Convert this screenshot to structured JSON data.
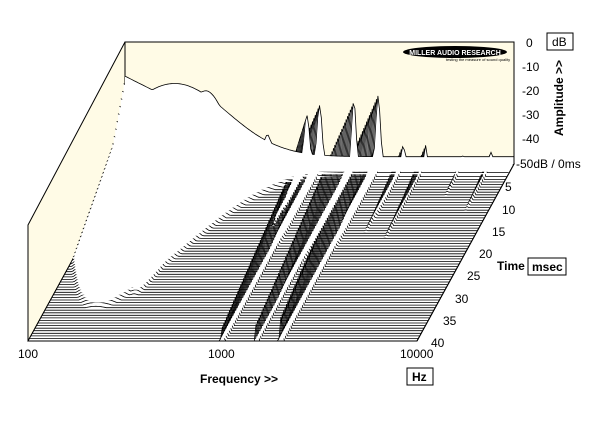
{
  "chart_data": {
    "type": "area",
    "subtype": "cumulative-spectral-decay-waterfall",
    "title": "",
    "brand": {
      "name": "MILLER AUDIO RESEARCH",
      "tagline": "testing the measure of sound quality"
    },
    "x_axis": {
      "label": "Frequency >>",
      "unit": "Hz",
      "scale": "log",
      "range": [
        100,
        10000
      ],
      "ticks": [
        "100",
        "1000",
        "10000"
      ]
    },
    "y_axis": {
      "label": "Amplitude >>",
      "unit": "dB",
      "range": [
        -50,
        0
      ],
      "ticks": [
        "0",
        "-10",
        "-20",
        "-30",
        "-40",
        "-50dB / 0ms"
      ]
    },
    "z_axis": {
      "label": "Time",
      "unit": "msec",
      "range": [
        0,
        40
      ],
      "ticks": [
        "5",
        "10",
        "15",
        "20",
        "25",
        "30",
        "35",
        "40"
      ]
    },
    "slices": 70,
    "resonances": [
      {
        "freq_hz": 180,
        "peak_db": -17,
        "width_oct": 0.9
      },
      {
        "freq_hz": 260,
        "peak_db": -20,
        "width_oct": 0.35
      },
      {
        "freq_hz": 540,
        "peak_db": -38,
        "width_oct": 0.12
      },
      {
        "freq_hz": 860,
        "peak_db": -30,
        "width_oct": 0.06
      },
      {
        "freq_hz": 1000,
        "peak_db": -26,
        "width_oct": 0.05
      },
      {
        "freq_hz": 1500,
        "peak_db": -24,
        "width_oct": 0.04
      },
      {
        "freq_hz": 2000,
        "peak_db": -22,
        "width_oct": 0.04
      },
      {
        "freq_hz": 2700,
        "peak_db": -40,
        "width_oct": 0.03
      },
      {
        "freq_hz": 3500,
        "peak_db": -42,
        "width_oct": 0.03
      },
      {
        "freq_hz": 5400,
        "peak_db": -44,
        "width_oct": 0.03
      },
      {
        "freq_hz": 7600,
        "peak_db": -45,
        "width_oct": 0.03
      }
    ],
    "colors": {
      "back_panel": "#fffbe6",
      "floor": "#ffffff",
      "trace": "#000000"
    }
  }
}
